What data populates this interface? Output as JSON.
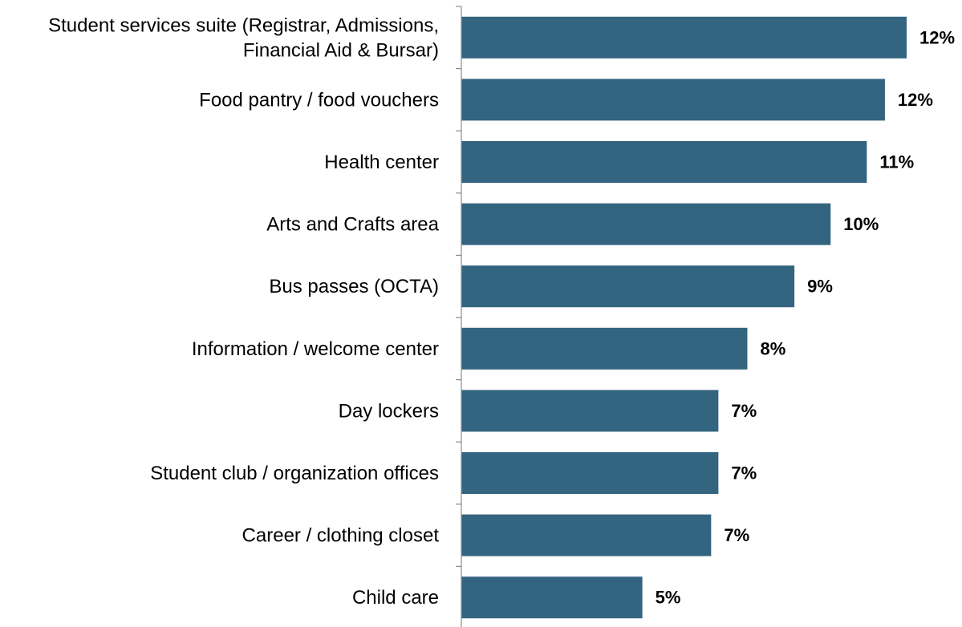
{
  "chart_data": {
    "type": "bar",
    "orientation": "horizontal",
    "title": "",
    "xlabel": "",
    "ylabel": "",
    "categories": [
      "Student services suite (Registrar, Admissions,|Financial Aid & Bursar)",
      "Food pantry / food vouchers",
      "Health center",
      "Arts and Crafts area",
      "Bus passes (OCTA)",
      "Information / welcome center",
      "Day lockers",
      "Student club / organization offices",
      "Career / clothing closet",
      "Child care"
    ],
    "values": [
      12.3,
      11.7,
      11.2,
      10.2,
      9.2,
      7.9,
      7.1,
      7.1,
      6.9,
      5.0
    ],
    "value_labels": [
      "12%",
      "12%",
      "11%",
      "10%",
      "9%",
      "8%",
      "7%",
      "7%",
      "7%",
      "5%"
    ],
    "xlim": [
      0,
      12.3
    ],
    "bar_color": "#336480",
    "grid": false,
    "legend": "none"
  }
}
